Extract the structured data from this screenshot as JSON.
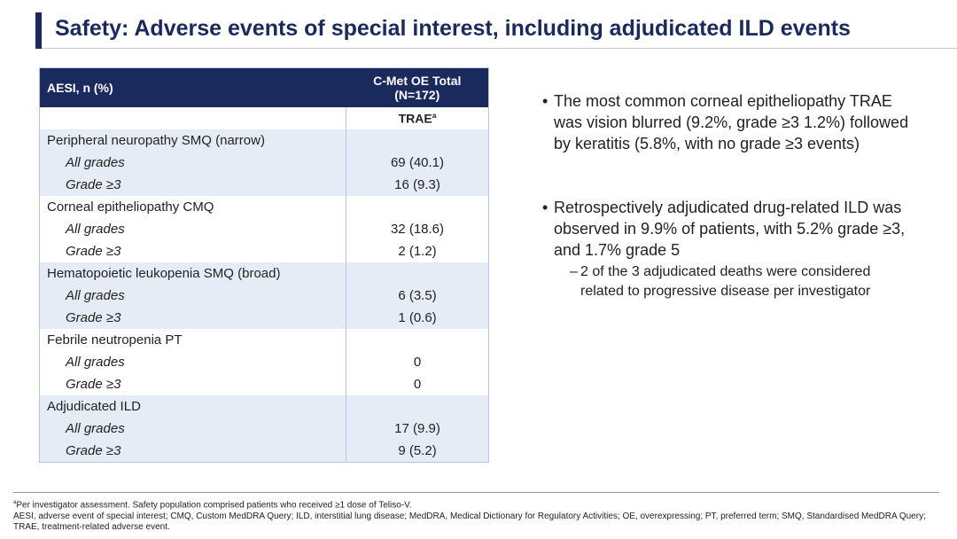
{
  "title": "Safety: Adverse events of special interest, including adjudicated ILD events",
  "table": {
    "header": [
      "AESI, n (%)",
      [
        "C-Met OE Total",
        "(N=172)"
      ]
    ],
    "subheader": {
      "text": "TRAE",
      "sup": "a"
    },
    "groups": [
      {
        "label": "Peripheral neuropathy SMQ (narrow)",
        "rows": [
          [
            "All grades",
            "69 (40.1)"
          ],
          [
            "Grade ≥3",
            "16 (9.3)"
          ]
        ]
      },
      {
        "label": "Corneal epitheliopathy CMQ",
        "rows": [
          [
            "All grades",
            "32 (18.6)"
          ],
          [
            "Grade ≥3",
            "2 (1.2)"
          ]
        ]
      },
      {
        "label": "Hematopoietic leukopenia SMQ (broad)",
        "rows": [
          [
            "All grades",
            "6 (3.5)"
          ],
          [
            "Grade ≥3",
            "1 (0.6)"
          ]
        ]
      },
      {
        "label": "Febrile neutropenia PT",
        "rows": [
          [
            "All grades",
            "0"
          ],
          [
            "Grade ≥3",
            "0"
          ]
        ]
      },
      {
        "label": "Adjudicated ILD",
        "rows": [
          [
            "All grades",
            "17 (9.9)"
          ],
          [
            "Grade ≥3",
            "9 (5.2)"
          ]
        ]
      }
    ]
  },
  "bullets": [
    {
      "text": "The most common corneal epitheliopathy TRAE was vision blurred (9.2%, grade ≥3 1.2%) followed by keratitis (5.8%, with no grade ≥3 events)",
      "sub": []
    },
    {
      "text": "Retrospectively adjudicated drug-related ILD was observed in 9.9% of patients, with 5.2% grade ≥3, and 1.7% grade 5",
      "sub": [
        "2 of the 3 adjudicated deaths were considered related to progressive disease per investigator"
      ]
    }
  ],
  "footnotes": [
    {
      "sup": "a",
      "text": "Per investigator assessment. Safety population comprised patients who received ≥1 dose of Teliso-V."
    },
    {
      "text": "AESI, adverse event of special interest; CMQ, Custom MedDRA Query; ILD, interstitial lung disease; MedDRA, Medical Dictionary for Regulatory Activities; OE, overexpressing; PT, preferred term; SMQ, Standardised MedDRA Query; TRAE, treatment-related adverse event."
    }
  ]
}
